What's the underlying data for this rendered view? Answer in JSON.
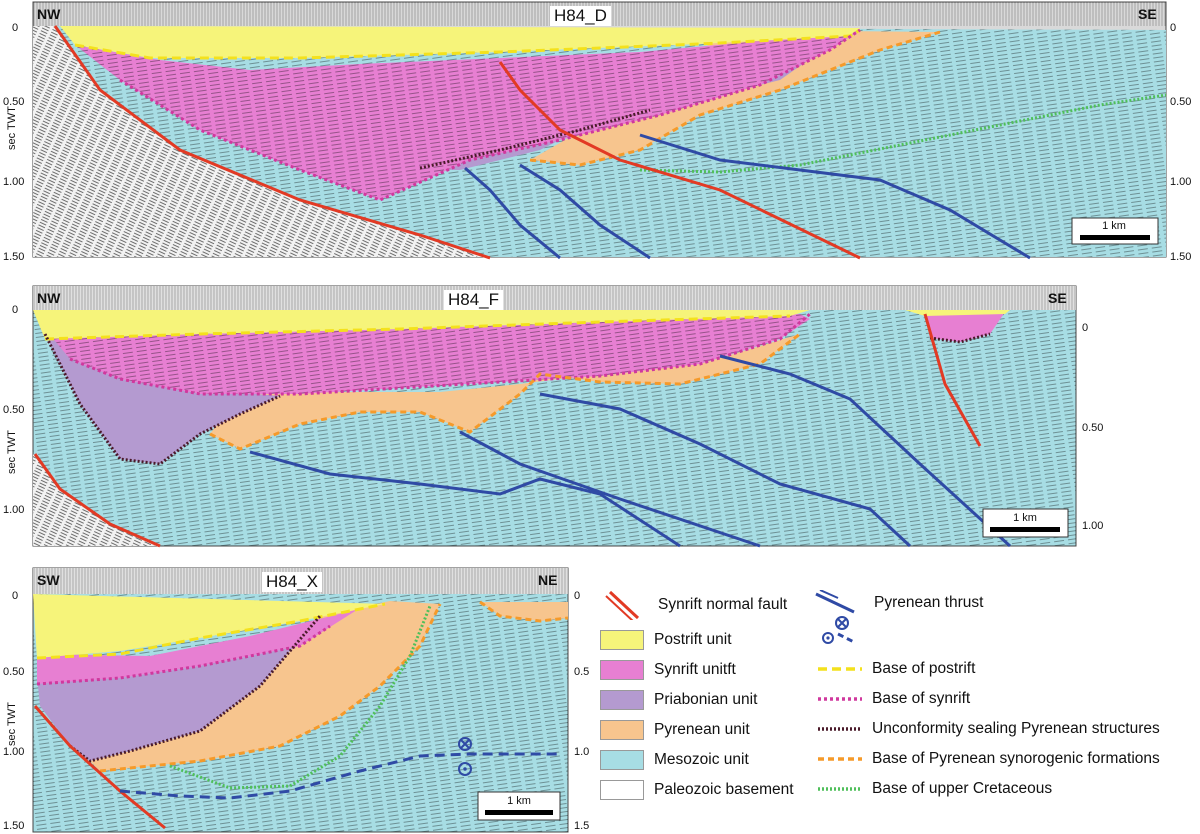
{
  "colors": {
    "postrift": "#f6f47a",
    "synrift": "#e77fd2",
    "priabonian": "#b49ad0",
    "pyrenean": "#f7c58e",
    "mesozoic": "#a7dde4",
    "paleozoic": "#ffffff",
    "fault": "#e23a24",
    "thrust": "#2f4aa5",
    "base_postrift": "#f4e11c",
    "base_synrift": "#d0389e",
    "unconformity": "#4a1a2a",
    "base_pyrenean": "#f59a2a",
    "base_cretaceous": "#4fbf5a"
  },
  "panel_d": {
    "title": "H84_D",
    "left_dir": "NW",
    "right_dir": "SE",
    "axis_label": "sec TWT",
    "left_ticks": [
      "0",
      "0.50",
      "1.00",
      "1.50"
    ],
    "right_ticks": [
      "0",
      "0.50",
      "1.00",
      "1.50"
    ],
    "scale_label": "1 km"
  },
  "panel_f": {
    "title": "H84_F",
    "left_dir": "NW",
    "right_dir": "SE",
    "axis_label": "sec TWT",
    "left_ticks": [
      "0",
      "0.50",
      "1.00"
    ],
    "right_ticks": [
      "0",
      "0.50",
      "1.00"
    ],
    "scale_label": "1 km"
  },
  "panel_x": {
    "title": "H84_X",
    "left_dir": "SW",
    "right_dir": "NE",
    "axis_label": "sec TWT",
    "left_ticks": [
      "0",
      "0.50",
      "1.00",
      "1.50"
    ],
    "right_ticks": [
      "0",
      "0.5",
      "1.0",
      "1.5"
    ],
    "scale_label": "1 km"
  },
  "legend": {
    "fault": "Synrift normal fault",
    "thrust": "Pyrenean thrust",
    "units": [
      "Postrift unit",
      "Synrift unitft",
      "Priabonian unit",
      "Pyrenean unit",
      "Mesozoic unit",
      "Paleozoic basement"
    ],
    "lines": [
      "Base of postrift",
      "Base of synrift",
      "Unconformity sealing Pyrenean structures",
      "Base of Pyrenean synorogenic formations",
      "Base of upper Cretaceous"
    ]
  }
}
